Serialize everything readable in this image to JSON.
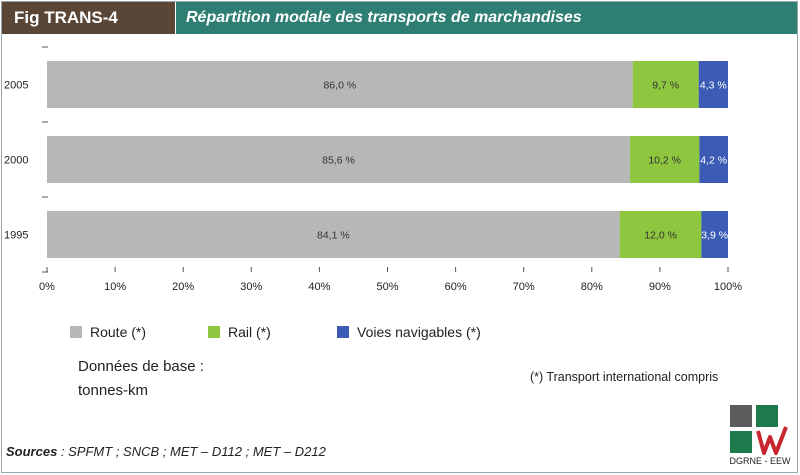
{
  "header": {
    "fig_label": "Fig TRANS-4",
    "title": "Répartition modale des transports de marchandises"
  },
  "chart_data": {
    "type": "bar",
    "orientation": "horizontal",
    "stacked": true,
    "categories": [
      "2005",
      "2000",
      "1995"
    ],
    "series": [
      {
        "name": "Route (*)",
        "color": "#b7b7b7",
        "values": [
          86.0,
          85.6,
          84.1
        ],
        "labels": [
          "86,0 %",
          "85,6 %",
          "84,1 %"
        ]
      },
      {
        "name": "Rail (*)",
        "color": "#8ec63f",
        "values": [
          9.7,
          10.2,
          12.0
        ],
        "labels": [
          "9,7 %",
          "10,2 %",
          "12,0 %"
        ]
      },
      {
        "name": "Voies navigables (*)",
        "color": "#3b5bb5",
        "values": [
          4.3,
          4.2,
          3.9
        ],
        "labels": [
          "4,3 %",
          "4,2 %",
          "3,9 %"
        ]
      }
    ],
    "xlim": [
      0,
      100
    ],
    "xticks": [
      "0%",
      "10%",
      "20%",
      "30%",
      "40%",
      "50%",
      "60%",
      "70%",
      "80%",
      "90%",
      "100%"
    ],
    "legend_position": "bottom"
  },
  "legend": {
    "items": [
      {
        "label": "Route (*)",
        "color": "#b7b7b7"
      },
      {
        "label": "Rail (*)",
        "color": "#8ec63f"
      },
      {
        "label": "Voies navigables (*)",
        "color": "#3b5bb5"
      }
    ]
  },
  "base_data": {
    "label": "Données de base :",
    "unit": "tonnes-km"
  },
  "note": "(*) Transport international compris",
  "sources": {
    "label": "Sources",
    "text": " : SPFMT ; SNCB ; MET – D112 ; MET – D212"
  },
  "logo": {
    "caption": "DGRNE - EEW"
  }
}
